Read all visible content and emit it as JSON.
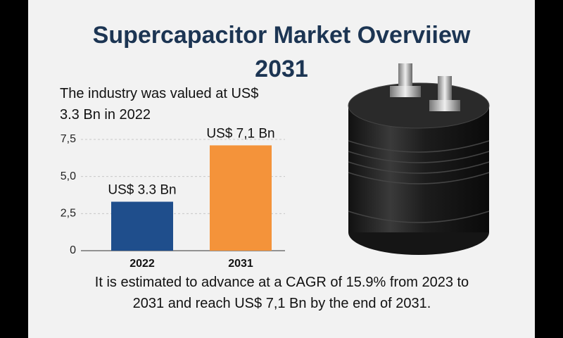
{
  "chart_data": {
    "type": "bar",
    "title": "Supercapacitor Market Overviiew 2031",
    "subtitle": "The industry was valued at US$ 3.3 Bn in 2022",
    "categories": [
      "2022",
      "2031"
    ],
    "values": [
      3.3,
      7.1
    ],
    "value_labels": [
      "US$ 3.3 Bn",
      "US$ 7,1 Bn"
    ],
    "colors": [
      "#1f4e8c",
      "#f4933a"
    ],
    "ylim": [
      0,
      7.5
    ],
    "yticks": [
      0,
      {
        "value": 2.5,
        "label": "2,5"
      },
      {
        "value": 5,
        "label": "5,0"
      },
      {
        "value": 7.5,
        "label": "7,5"
      }
    ],
    "grid": true,
    "footnote": "It is estimated to advance at a CAGR of 15.9% from 2023 to 2031 and reach US$ 7,1 Bn by the end of 2031."
  }
}
